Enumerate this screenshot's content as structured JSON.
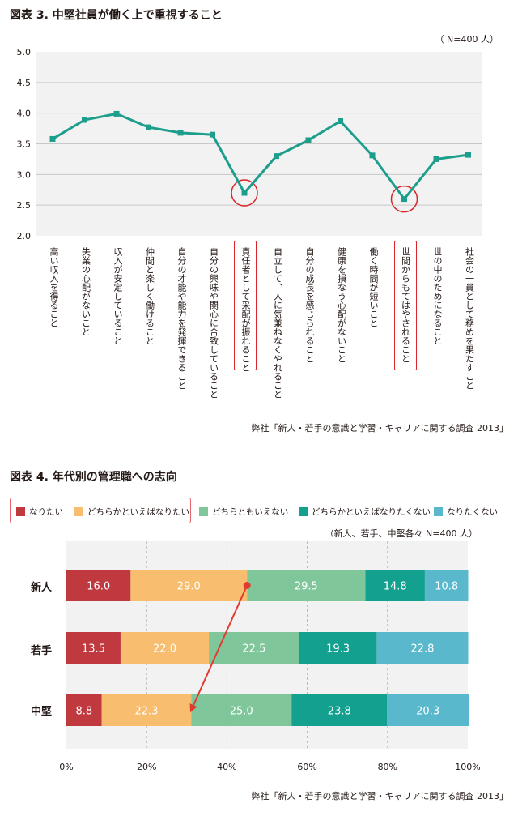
{
  "chart_data": [
    {
      "type": "line",
      "title": "図表 3. 中堅社員が働く上で重視すること",
      "note": "（ N=400 人）",
      "source": "弊社「新人・若手の意識と学習・キャリアに関する調査 2013」",
      "ylim": [
        2.0,
        5.0
      ],
      "yticks": [
        "2.0",
        "2.5",
        "3.0",
        "3.5",
        "4.0",
        "4.5",
        "5.0"
      ],
      "grid": true,
      "categories": [
        "高い収入を得ること",
        "失業の心配がないこと",
        "収入が安定していること",
        "仲間と楽しく働けること",
        "自分の才能や能力を発揮できること",
        "自分の興味や関心に合致していること",
        "責任者として采配が振れること",
        "自立して、人に気兼ねなくやれること",
        "自分の成長を感じられること",
        "健康を損なう心配がないこと",
        "働く時間が短いこと",
        "世間からもてはやされること",
        "世の中のためになること",
        "社会の一員として務めを果たすこと"
      ],
      "values": [
        3.58,
        3.89,
        3.99,
        3.77,
        3.68,
        3.65,
        2.7,
        3.3,
        3.56,
        3.87,
        3.31,
        2.6,
        3.25,
        3.32
      ],
      "highlighted": [
        6,
        11
      ],
      "line_color": "#1d9e8c",
      "highlight_color": "#d9252a"
    },
    {
      "type": "bar",
      "orientation": "horizontal-stacked-100",
      "title": "図表 4. 年代別の管理職への志向",
      "note": "（新人、若手、中堅各々 N=400 人）",
      "source": "弊社「新人・若手の意識と学習・キャリアに関する調査 2013」",
      "categories": [
        "新人",
        "若手",
        "中堅"
      ],
      "series": [
        {
          "name": "なりたい",
          "color": "#c0393f",
          "values": [
            16.0,
            13.5,
            8.8
          ]
        },
        {
          "name": "どちらかといえばなりたい",
          "color": "#f8bd6e",
          "values": [
            29.0,
            22.0,
            22.3
          ]
        },
        {
          "name": "どちらともいえない",
          "color": "#7fc79a",
          "values": [
            29.5,
            22.5,
            25.0
          ]
        },
        {
          "name": "どちらかといえばなりたくない",
          "color": "#14a08e",
          "values": [
            14.8,
            19.3,
            23.8
          ]
        },
        {
          "name": "なりたくない",
          "color": "#5ab8cc",
          "values": [
            10.8,
            22.8,
            20.3
          ]
        }
      ],
      "value_labels": [
        [
          "16.0",
          "29.0",
          "29.5",
          "14.8",
          "10.8"
        ],
        [
          "13.5",
          "22.0",
          "22.5",
          "19.3",
          "22.8"
        ],
        [
          "8.8",
          "22.3",
          "25.0",
          "23.8",
          "20.3"
        ]
      ],
      "xlim": [
        0,
        100
      ],
      "xticks": [
        "0%",
        "20%",
        "40%",
        "60%",
        "80%",
        "100%"
      ],
      "annotation_arrow": {
        "from": {
          "row": "新人",
          "value": 45.0
        },
        "to": {
          "row": "中堅",
          "value": 31.1
        },
        "color": "#e23a2e"
      }
    }
  ]
}
